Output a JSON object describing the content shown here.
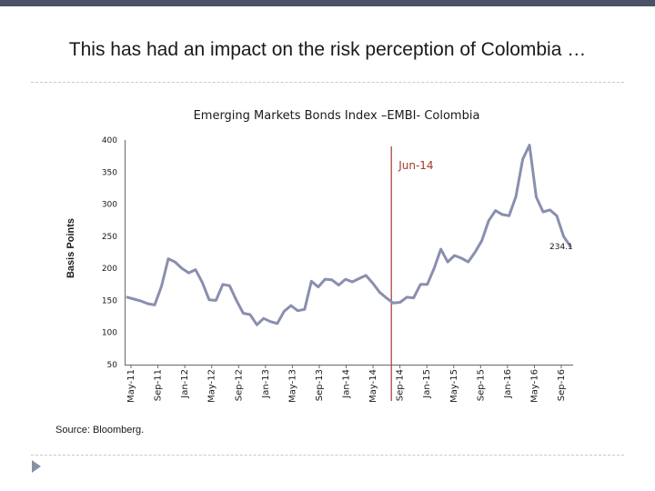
{
  "slide": {
    "title": "This has had an impact on the risk perception of Colombia …",
    "source": "Source: Bloomberg."
  },
  "colors": {
    "top_bar": "#4a5268",
    "series_line": "#8a8fb0",
    "event_line": "#a33a2a",
    "event_label": "#a33a2a",
    "text": "#1a1a1a",
    "axis": "#666666"
  },
  "chart_data": {
    "type": "line",
    "title": "Emerging Markets Bonds Index –EMBI- Colombia",
    "xlabel": "",
    "ylabel": "Basis Points",
    "ylim": [
      50,
      400
    ],
    "yticks": [
      50,
      100,
      150,
      200,
      250,
      300,
      350,
      400
    ],
    "grid": false,
    "xticks": [
      "May-11",
      "Sep-11",
      "Jan-12",
      "May-12",
      "Sep-12",
      "Jan-13",
      "May-13",
      "Sep-13",
      "Jan-14",
      "May-14",
      "Sep-14",
      "Jan-15",
      "May-15",
      "Sep-15",
      "Jan-16",
      "May-16",
      "Sep-16"
    ],
    "series": [
      {
        "name": "EMBI Colombia",
        "values": [
          155,
          152,
          149,
          145,
          143,
          172,
          215,
          210,
          200,
          193,
          198,
          178,
          151,
          150,
          175,
          173,
          150,
          130,
          128,
          112,
          122,
          117,
          114,
          133,
          142,
          134,
          136,
          180,
          171,
          183,
          182,
          174,
          183,
          179,
          184,
          189,
          177,
          163,
          154,
          146,
          147,
          155,
          154,
          175,
          175,
          200,
          230,
          210,
          220,
          216,
          210,
          225,
          243,
          274,
          290,
          284,
          282,
          312,
          370,
          392,
          311,
          288,
          291,
          282,
          250,
          234
        ]
      }
    ],
    "event": {
      "label": "Jun-14",
      "index": 39
    },
    "last_value_label": "234.1"
  }
}
